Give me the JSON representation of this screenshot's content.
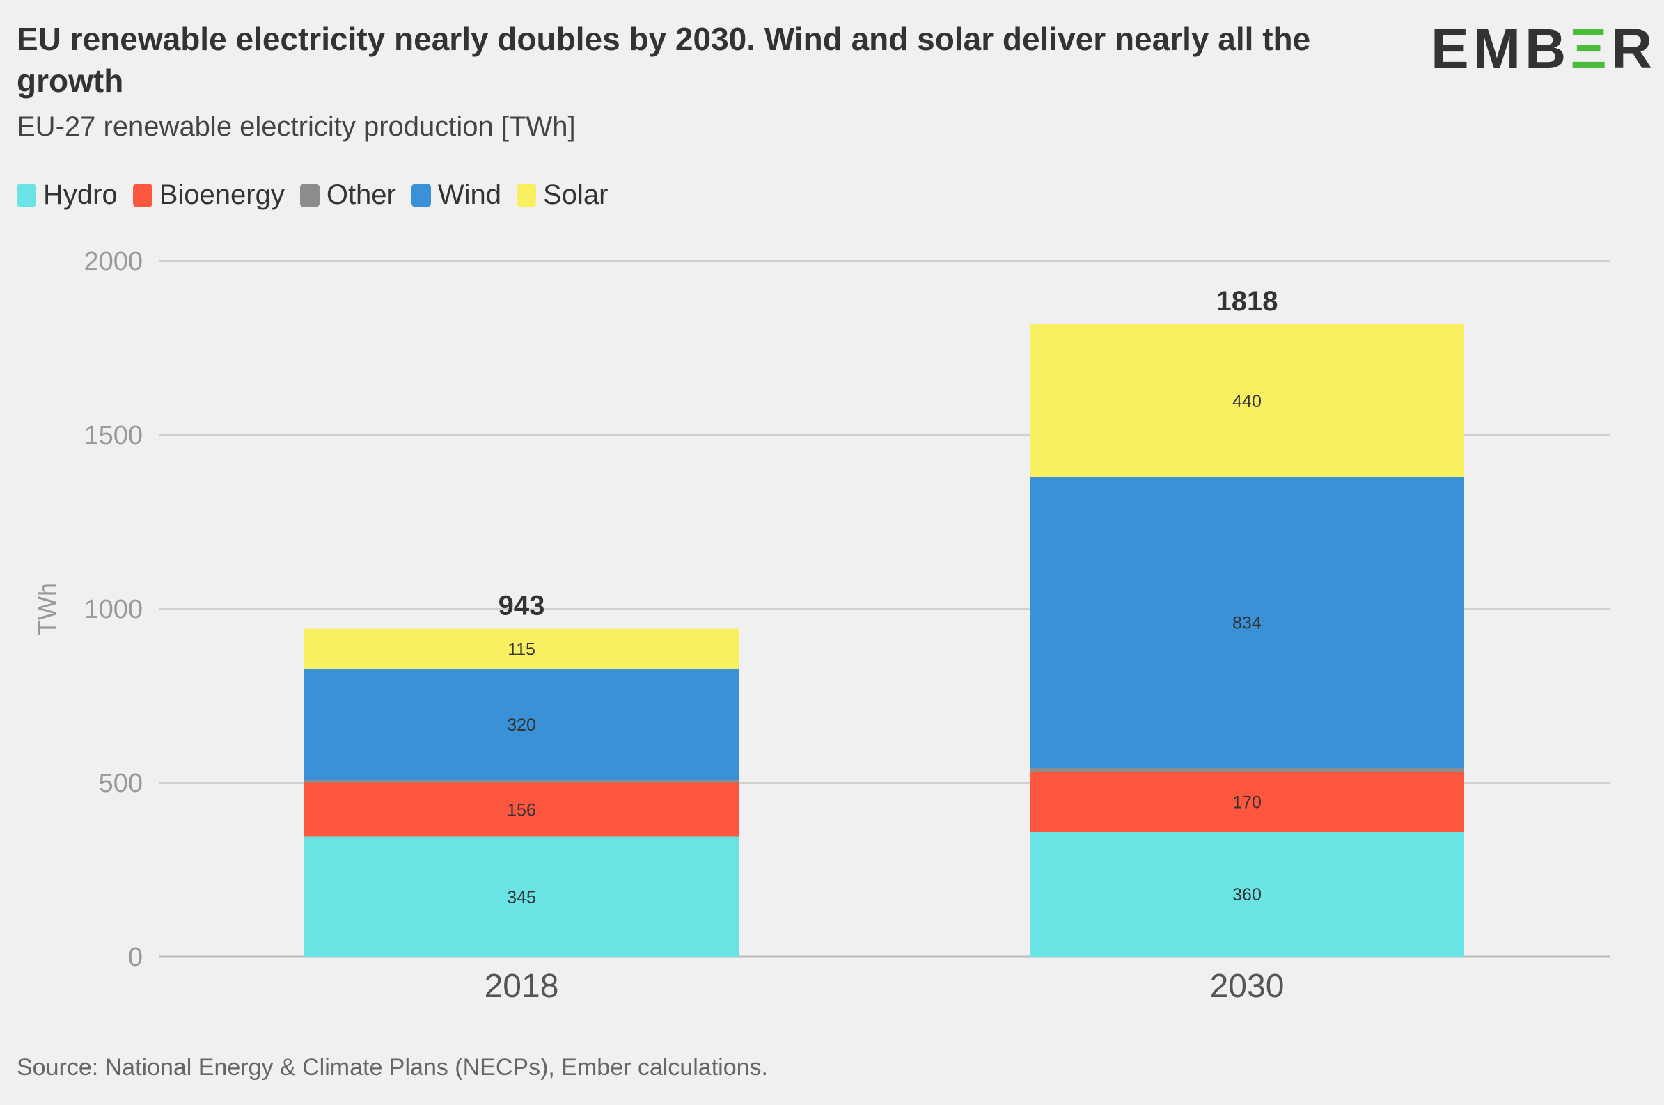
{
  "header": {
    "title": "EU renewable electricity nearly doubles by 2030. Wind and solar deliver nearly all the growth",
    "subtitle": "EU-27 renewable electricity production [TWh]",
    "logo_text": "EMB",
    "logo_mark": "Ξ",
    "logo_tail": "R"
  },
  "legend": [
    {
      "name": "Hydro",
      "color": "#6ae3e5"
    },
    {
      "name": "Bioenergy",
      "color": "#fe5740"
    },
    {
      "name": "Other",
      "color": "#8c8c8c"
    },
    {
      "name": "Wind",
      "color": "#3a91d8"
    },
    {
      "name": "Solar",
      "color": "#f9f061"
    }
  ],
  "chart_data": {
    "type": "bar",
    "stacked": true,
    "categories": [
      "2018",
      "2030"
    ],
    "series": [
      {
        "name": "Hydro",
        "color": "#6ae3e5",
        "values": [
          345,
          360
        ],
        "labels": [
          "345",
          "360"
        ]
      },
      {
        "name": "Bioenergy",
        "color": "#fe5740",
        "values": [
          156,
          170
        ],
        "labels": [
          "156",
          "170"
        ]
      },
      {
        "name": "Other",
        "color": "#8c8c8c",
        "values": [
          7,
          14
        ],
        "labels": [
          "",
          ""
        ]
      },
      {
        "name": "Wind",
        "color": "#3a91d8",
        "values": [
          320,
          834
        ],
        "labels": [
          "320",
          "834"
        ]
      },
      {
        "name": "Solar",
        "color": "#f9f061",
        "values": [
          115,
          440
        ],
        "labels": [
          "115",
          "440"
        ]
      }
    ],
    "totals": [
      "943",
      "1818"
    ],
    "ylabel": "TWh",
    "ylim": [
      0,
      2000
    ],
    "yticks": [
      "0",
      "500",
      "1000",
      "1500",
      "2000"
    ],
    "grid": true,
    "legend_position": "top-left"
  },
  "footer": {
    "source": "Source: National Energy & Climate Plans (NECPs), Ember calculations."
  }
}
